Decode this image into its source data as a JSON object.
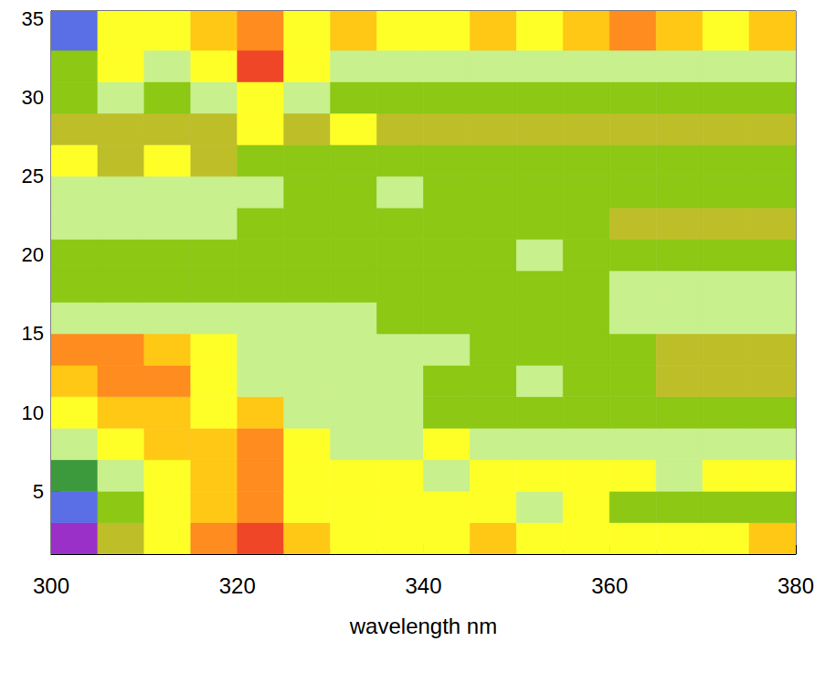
{
  "chart_data": {
    "type": "heatmap",
    "x_label": "wavelength nm",
    "xlim": [
      300,
      380
    ],
    "xticks": [
      300,
      320,
      340,
      360,
      380
    ],
    "ylim": [
      1,
      35.5
    ],
    "yticks": [
      5,
      10,
      15,
      20,
      25,
      30,
      35
    ],
    "grid": false,
    "x_edges": [
      300,
      305,
      310,
      315,
      320,
      325,
      330,
      335,
      340,
      345,
      350,
      355,
      360,
      365,
      370,
      375,
      380
    ],
    "y_edges": [
      1,
      3,
      5,
      7,
      9,
      11,
      13,
      15,
      17,
      19,
      21,
      23,
      25,
      27,
      29,
      31,
      33,
      35.5
    ],
    "cells": [
      [
        0,
        4,
        6,
        8,
        9,
        7,
        6,
        6,
        6,
        7,
        6,
        6,
        6,
        6,
        6,
        7
      ],
      [
        1,
        3,
        6,
        7,
        8,
        6,
        6,
        6,
        6,
        6,
        5,
        6,
        3,
        3,
        3,
        3
      ],
      [
        2,
        5,
        6,
        7,
        8,
        6,
        6,
        6,
        5,
        6,
        6,
        6,
        6,
        5,
        6,
        6
      ],
      [
        5,
        6,
        7,
        7,
        8,
        6,
        5,
        5,
        6,
        5,
        5,
        5,
        5,
        5,
        5,
        5
      ],
      [
        6,
        7,
        7,
        6,
        7,
        5,
        5,
        5,
        3,
        3,
        3,
        3,
        3,
        3,
        3,
        3
      ],
      [
        7,
        8,
        8,
        6,
        5,
        5,
        5,
        5,
        3,
        3,
        5,
        3,
        3,
        4,
        4,
        4
      ],
      [
        8,
        8,
        7,
        6,
        5,
        5,
        5,
        5,
        5,
        3,
        3,
        3,
        3,
        4,
        4,
        4
      ],
      [
        5,
        5,
        5,
        5,
        5,
        5,
        5,
        3,
        3,
        3,
        3,
        3,
        5,
        5,
        5,
        5
      ],
      [
        3,
        3,
        3,
        3,
        3,
        3,
        3,
        3,
        3,
        3,
        3,
        3,
        5,
        5,
        5,
        5
      ],
      [
        3,
        3,
        3,
        3,
        3,
        3,
        3,
        3,
        3,
        3,
        5,
        3,
        3,
        3,
        3,
        3
      ],
      [
        5,
        5,
        5,
        5,
        3,
        3,
        3,
        3,
        3,
        3,
        3,
        3,
        4,
        4,
        4,
        4
      ],
      [
        5,
        5,
        5,
        5,
        5,
        3,
        3,
        5,
        3,
        3,
        3,
        3,
        3,
        3,
        3,
        3
      ],
      [
        6,
        4,
        6,
        4,
        3,
        3,
        3,
        3,
        3,
        3,
        3,
        3,
        3,
        3,
        3,
        3
      ],
      [
        4,
        4,
        4,
        4,
        6,
        4,
        6,
        4,
        4,
        4,
        4,
        4,
        4,
        4,
        4,
        4
      ],
      [
        3,
        5,
        3,
        5,
        6,
        5,
        3,
        3,
        3,
        3,
        3,
        3,
        3,
        3,
        3,
        3
      ],
      [
        3,
        6,
        5,
        6,
        9,
        6,
        5,
        5,
        5,
        5,
        5,
        5,
        5,
        5,
        5,
        5
      ],
      [
        1,
        6,
        6,
        7,
        8,
        6,
        7,
        6,
        6,
        7,
        6,
        7,
        8,
        7,
        6,
        7
      ]
    ],
    "color_levels": [
      0,
      1,
      2,
      3,
      4,
      5,
      6,
      7,
      8,
      9
    ],
    "colors": [
      "#9b30c8",
      "#5a6ee6",
      "#3c9a3c",
      "#8cc814",
      "#bebe28",
      "#c8f08c",
      "#ffff28",
      "#ffc814",
      "#ff8c1e",
      "#f04628"
    ]
  }
}
